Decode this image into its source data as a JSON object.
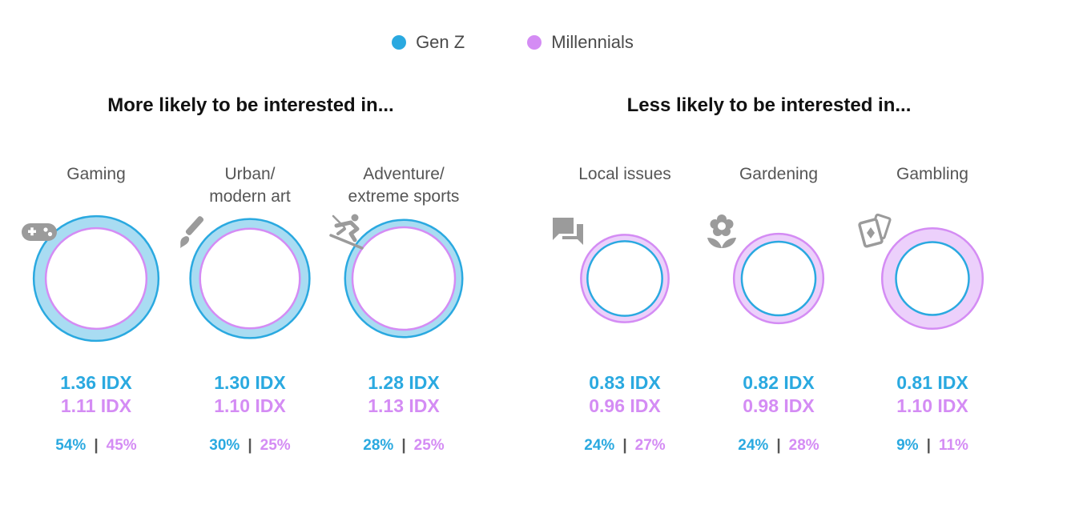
{
  "legend": {
    "genz_label": "Gen Z",
    "millennials_label": "Millennials"
  },
  "colors": {
    "genz": "#2aa9e0",
    "millennials": "#d48cf4",
    "genz_fill": "#a9dcf2",
    "millennials_fill": "#ecd0fb",
    "icon": "#9b9b9b"
  },
  "sections": {
    "more_title": "More likely to be interested in...",
    "less_title": "Less likely to be interested in..."
  },
  "chart_data": {
    "type": "table",
    "series": [
      {
        "name": "Gen Z",
        "idx": [
          1.36,
          1.3,
          1.28,
          0.83,
          0.82,
          0.81
        ],
        "pct": [
          54,
          30,
          28,
          24,
          24,
          9
        ]
      },
      {
        "name": "Millennials",
        "idx": [
          1.11,
          1.1,
          1.13,
          0.96,
          0.98,
          1.1
        ],
        "pct": [
          45,
          25,
          25,
          27,
          28,
          11
        ]
      }
    ],
    "categories": [
      "Gaming",
      "Urban/ modern art",
      "Adventure/ extreme sports",
      "Local issues",
      "Gardening",
      "Gambling"
    ],
    "items": [
      {
        "label": "Gaming",
        "icon": "gamepad-icon",
        "genz_idx": "1.36 IDX",
        "mill_idx": "1.11 IDX",
        "genz_pct": "54%",
        "mill_pct": "45%"
      },
      {
        "label": "Urban/\nmodern art",
        "icon": "paintbrush-icon",
        "genz_idx": "1.30 IDX",
        "mill_idx": "1.10 IDX",
        "genz_pct": "30%",
        "mill_pct": "25%"
      },
      {
        "label": "Adventure/\nextreme sports",
        "icon": "skiing-icon",
        "genz_idx": "1.28 IDX",
        "mill_idx": "1.13 IDX",
        "genz_pct": "28%",
        "mill_pct": "25%"
      },
      {
        "label": "Local issues",
        "icon": "chat-bubbles-icon",
        "genz_idx": "0.83 IDX",
        "mill_idx": "0.96 IDX",
        "genz_pct": "24%",
        "mill_pct": "27%"
      },
      {
        "label": "Gardening",
        "icon": "flower-icon",
        "genz_idx": "0.82 IDX",
        "mill_idx": "0.98 IDX",
        "genz_pct": "24%",
        "mill_pct": "28%"
      },
      {
        "label": "Gambling",
        "icon": "playing-cards-icon",
        "genz_idx": "0.81 IDX",
        "mill_idx": "1.10 IDX",
        "genz_pct": "9%",
        "mill_pct": "11%"
      }
    ]
  }
}
